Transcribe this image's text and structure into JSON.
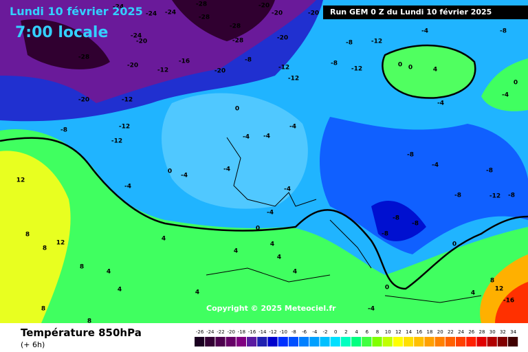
{
  "header": {
    "date": "Lundi 10 février 2025",
    "time": "7:00 locale",
    "run": "Run GEM 0 Z du Lundi 10 février 2025"
  },
  "copyright": "Copyright © 2025 Meteociel.fr",
  "footer": {
    "title": "Température 850hPa",
    "subtitle": "(+ 6h)"
  },
  "scale": {
    "ticks": [
      -26,
      -24,
      -22,
      -20,
      -18,
      -16,
      -14,
      -12,
      -10,
      -8,
      -6,
      -4,
      -2,
      0,
      2,
      4,
      6,
      8,
      10,
      12,
      14,
      16,
      18,
      20,
      22,
      24,
      26,
      28,
      30,
      32,
      34
    ],
    "colors": [
      "#1a0020",
      "#330033",
      "#4d004d",
      "#660066",
      "#800080",
      "#5a1aa0",
      "#2020b0",
      "#0000cd",
      "#0030ff",
      "#0050ff",
      "#0080ff",
      "#00a0ff",
      "#00c0ff",
      "#00e0ff",
      "#00ffc0",
      "#00ff80",
      "#40ff40",
      "#80ff00",
      "#c0ff00",
      "#ffff00",
      "#ffe000",
      "#ffc000",
      "#ffa000",
      "#ff8000",
      "#ff6000",
      "#ff4000",
      "#ff2000",
      "#e00000",
      "#b00000",
      "#800000",
      "#400000"
    ]
  },
  "map_labels": [
    -24,
    -24,
    -24,
    -28,
    -28,
    -20,
    -20,
    -20,
    -28,
    -24,
    -20,
    -20,
    -28,
    -28,
    -20,
    -16,
    -12,
    -20,
    -8,
    -12,
    -12,
    -8,
    -12,
    -8,
    -12,
    -4,
    -8,
    0,
    0,
    4,
    -4,
    0,
    -4,
    -20,
    -12,
    -12,
    -12,
    -8,
    -4,
    12,
    0,
    -4,
    -4,
    0,
    -4,
    -4,
    -4,
    -8,
    -4,
    -8,
    -8,
    -12,
    -8,
    -8,
    -8,
    0,
    4,
    4,
    -4,
    -4,
    4,
    8,
    8,
    12,
    4,
    4,
    8,
    4,
    4,
    4,
    8,
    8,
    12,
    -16,
    -4,
    0,
    -8,
    0,
    8,
    4
  ]
}
